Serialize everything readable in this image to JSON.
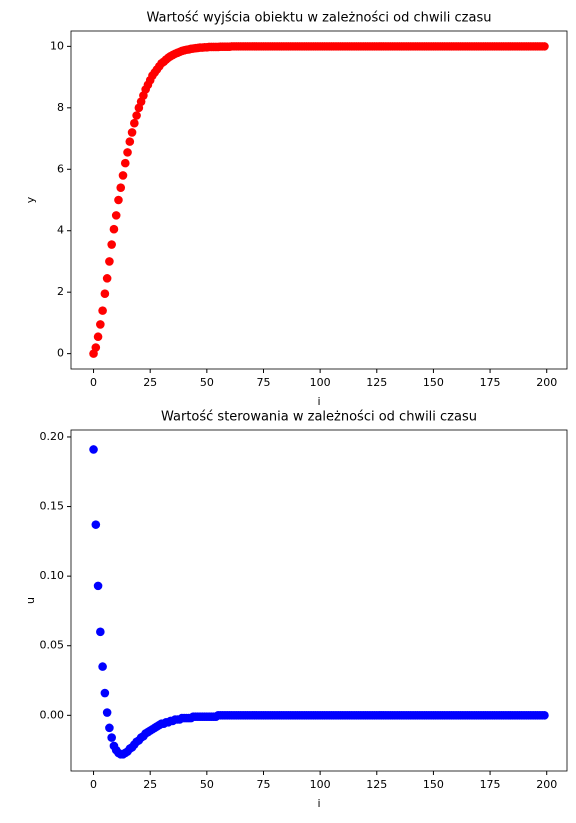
{
  "chart_data": [
    {
      "type": "scatter",
      "title": "Wartość wyjścia obiektu w zależności od chwili czasu",
      "x_label": "i",
      "y_label": "y",
      "color": "#ff0000",
      "xlim": [
        -9.95,
        208.95
      ],
      "xticks": [
        0,
        25,
        50,
        75,
        100,
        125,
        150,
        175,
        200
      ],
      "ylim": [
        -0.5,
        10.5
      ],
      "yticks": [
        0,
        2,
        4,
        6,
        8,
        10
      ],
      "x": [
        0,
        1,
        2,
        3,
        4,
        5,
        6,
        7,
        8,
        9,
        10,
        11,
        12,
        13,
        14,
        15,
        16,
        17,
        18,
        19,
        20,
        21,
        22,
        23,
        24,
        25,
        26,
        27,
        28,
        29,
        30,
        31,
        32,
        33,
        34,
        35,
        36,
        37,
        38,
        39,
        40,
        41,
        42,
        43,
        44,
        45,
        46,
        47,
        48,
        49,
        50,
        51,
        52,
        53,
        54,
        55,
        56,
        57,
        58,
        59,
        60,
        61,
        62,
        63,
        64,
        65,
        66,
        67,
        68,
        69,
        70,
        71,
        72,
        73,
        74,
        75,
        76,
        77,
        78,
        79,
        80,
        81,
        82,
        83,
        84,
        85,
        86,
        87,
        88,
        89,
        90,
        91,
        92,
        93,
        94,
        95,
        96,
        97,
        98,
        99,
        100,
        101,
        102,
        103,
        104,
        105,
        106,
        107,
        108,
        109,
        110,
        111,
        112,
        113,
        114,
        115,
        116,
        117,
        118,
        119,
        120,
        121,
        122,
        123,
        124,
        125,
        126,
        127,
        128,
        129,
        130,
        131,
        132,
        133,
        134,
        135,
        136,
        137,
        138,
        139,
        140,
        141,
        142,
        143,
        144,
        145,
        146,
        147,
        148,
        149,
        150,
        151,
        152,
        153,
        154,
        155,
        156,
        157,
        158,
        159,
        160,
        161,
        162,
        163,
        164,
        165,
        166,
        167,
        168,
        169,
        170,
        171,
        172,
        173,
        174,
        175,
        176,
        177,
        178,
        179,
        180,
        181,
        182,
        183,
        184,
        185,
        186,
        187,
        188,
        189,
        190,
        191,
        192,
        193,
        194,
        195,
        196,
        197,
        198,
        199
      ],
      "values": [
        0,
        0.2,
        0.55,
        0.95,
        1.4,
        1.95,
        2.45,
        3.0,
        3.55,
        4.05,
        4.5,
        5.0,
        5.4,
        5.8,
        6.2,
        6.55,
        6.9,
        7.2,
        7.5,
        7.75,
        8.0,
        8.2,
        8.4,
        8.6,
        8.75,
        8.9,
        9.05,
        9.15,
        9.25,
        9.35,
        9.45,
        9.5,
        9.57,
        9.63,
        9.68,
        9.72,
        9.76,
        9.79,
        9.82,
        9.85,
        9.87,
        9.89,
        9.9,
        9.92,
        9.93,
        9.94,
        9.95,
        9.96,
        9.96,
        9.97,
        9.97,
        9.98,
        9.98,
        9.98,
        9.98,
        9.98,
        9.99,
        9.99,
        9.99,
        9.99,
        9.99,
        10,
        10,
        10,
        10,
        10,
        10,
        10,
        10,
        10,
        10,
        10,
        10,
        10,
        10,
        10,
        10,
        10,
        10,
        10,
        10,
        10,
        10,
        10,
        10,
        10,
        10,
        10,
        10,
        10,
        10,
        10,
        10,
        10,
        10,
        10,
        10,
        10,
        10,
        10,
        10,
        10,
        10,
        10,
        10,
        10,
        10,
        10,
        10,
        10,
        10,
        10,
        10,
        10,
        10,
        10,
        10,
        10,
        10,
        10,
        10,
        10,
        10,
        10,
        10,
        10,
        10,
        10,
        10,
        10,
        10,
        10,
        10,
        10,
        10,
        10,
        10,
        10,
        10,
        10,
        10,
        10,
        10,
        10,
        10,
        10,
        10,
        10,
        10,
        10,
        10,
        10,
        10,
        10,
        10,
        10,
        10,
        10,
        10,
        10,
        10,
        10,
        10,
        10,
        10,
        10,
        10,
        10,
        10,
        10,
        10,
        10,
        10,
        10,
        10,
        10,
        10,
        10,
        10,
        10,
        10,
        10,
        10,
        10,
        10,
        10,
        10,
        10,
        10,
        10,
        10,
        10,
        10,
        10,
        10,
        10,
        10,
        10,
        10,
        10
      ]
    },
    {
      "type": "scatter",
      "title": "Wartość sterowania w zależności od chwili czasu",
      "x_label": "i",
      "y_label": "u",
      "color": "#0000ff",
      "xlim": [
        -9.95,
        208.95
      ],
      "xticks": [
        0,
        25,
        50,
        75,
        100,
        125,
        150,
        175,
        200
      ],
      "ylim": [
        -0.04,
        0.205
      ],
      "yticks": [
        {
          "value": 0,
          "label": "0.00"
        },
        {
          "value": 0.05,
          "label": "0.05"
        },
        {
          "value": 0.1,
          "label": "0.10"
        },
        {
          "value": 0.15,
          "label": "0.15"
        },
        {
          "value": 0.2,
          "label": "0.20"
        }
      ],
      "x": [
        0,
        1,
        2,
        3,
        4,
        5,
        6,
        7,
        8,
        9,
        10,
        11,
        12,
        13,
        14,
        15,
        16,
        17,
        18,
        19,
        20,
        21,
        22,
        23,
        24,
        25,
        26,
        27,
        28,
        29,
        30,
        31,
        32,
        33,
        34,
        35,
        36,
        37,
        38,
        39,
        40,
        41,
        42,
        43,
        44,
        45,
        46,
        47,
        48,
        49,
        50,
        51,
        52,
        53,
        54,
        55,
        56,
        57,
        58,
        59,
        60,
        61,
        62,
        63,
        64,
        65,
        66,
        67,
        68,
        69,
        70,
        71,
        72,
        73,
        74,
        75,
        76,
        77,
        78,
        79,
        80,
        81,
        82,
        83,
        84,
        85,
        86,
        87,
        88,
        89,
        90,
        91,
        92,
        93,
        94,
        95,
        96,
        97,
        98,
        99,
        100,
        101,
        102,
        103,
        104,
        105,
        106,
        107,
        108,
        109,
        110,
        111,
        112,
        113,
        114,
        115,
        116,
        117,
        118,
        119,
        120,
        121,
        122,
        123,
        124,
        125,
        126,
        127,
        128,
        129,
        130,
        131,
        132,
        133,
        134,
        135,
        136,
        137,
        138,
        139,
        140,
        141,
        142,
        143,
        144,
        145,
        146,
        147,
        148,
        149,
        150,
        151,
        152,
        153,
        154,
        155,
        156,
        157,
        158,
        159,
        160,
        161,
        162,
        163,
        164,
        165,
        166,
        167,
        168,
        169,
        170,
        171,
        172,
        173,
        174,
        175,
        176,
        177,
        178,
        179,
        180,
        181,
        182,
        183,
        184,
        185,
        186,
        187,
        188,
        189,
        190,
        191,
        192,
        193,
        194,
        195,
        196,
        197,
        198,
        199
      ],
      "values": [
        0.191,
        0.137,
        0.093,
        0.06,
        0.035,
        0.016,
        0.002,
        -0.009,
        -0.016,
        -0.022,
        -0.025,
        -0.027,
        -0.028,
        -0.028,
        -0.027,
        -0.026,
        -0.024,
        -0.023,
        -0.021,
        -0.019,
        -0.018,
        -0.016,
        -0.015,
        -0.013,
        -0.012,
        -0.011,
        -0.01,
        -0.009,
        -0.008,
        -0.007,
        -0.006,
        -0.006,
        -0.005,
        -0.005,
        -0.004,
        -0.004,
        -0.003,
        -0.003,
        -0.003,
        -0.002,
        -0.002,
        -0.002,
        -0.002,
        -0.002,
        -0.001,
        -0.001,
        -0.001,
        -0.001,
        -0.001,
        -0.001,
        -0.001,
        -0.001,
        -0.001,
        -0.001,
        -0.001,
        0,
        0,
        0,
        0,
        0,
        0,
        0,
        0,
        0,
        0,
        0,
        0,
        0,
        0,
        0,
        0,
        0,
        0,
        0,
        0,
        0,
        0,
        0,
        0,
        0,
        0,
        0,
        0,
        0,
        0,
        0,
        0,
        0,
        0,
        0,
        0,
        0,
        0,
        0,
        0,
        0,
        0,
        0,
        0,
        0,
        0,
        0,
        0,
        0,
        0,
        0,
        0,
        0,
        0,
        0,
        0,
        0,
        0,
        0,
        0,
        0,
        0,
        0,
        0,
        0,
        0,
        0,
        0,
        0,
        0,
        0,
        0,
        0,
        0,
        0,
        0,
        0,
        0,
        0,
        0,
        0,
        0,
        0,
        0,
        0,
        0,
        0,
        0,
        0,
        0,
        0,
        0,
        0,
        0,
        0,
        0,
        0,
        0,
        0,
        0,
        0,
        0,
        0,
        0,
        0,
        0,
        0,
        0,
        0,
        0,
        0,
        0,
        0,
        0,
        0,
        0,
        0,
        0,
        0,
        0,
        0,
        0,
        0,
        0,
        0,
        0,
        0,
        0,
        0,
        0,
        0,
        0,
        0,
        0,
        0,
        0,
        0,
        0,
        0,
        0,
        0,
        0,
        0,
        0,
        0
      ]
    }
  ]
}
